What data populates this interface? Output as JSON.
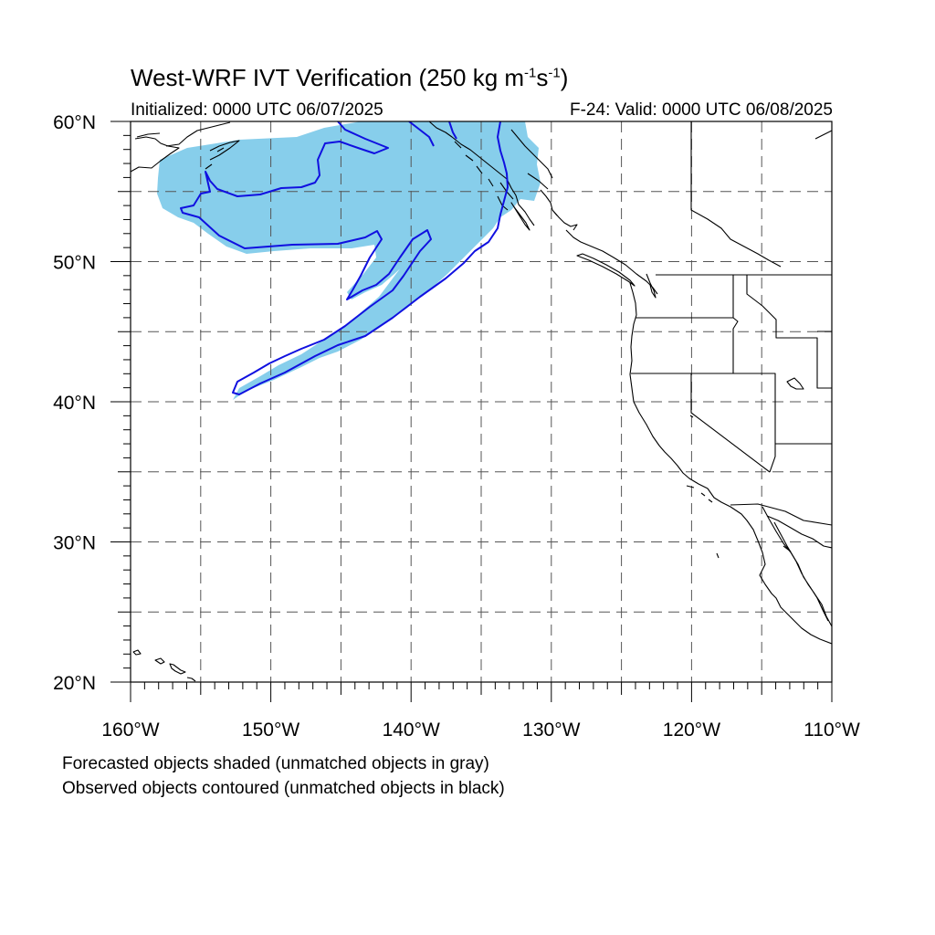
{
  "title": {
    "main": "West-WRF IVT Verification (250 kg m",
    "exp1": "-1",
    "mid": "s",
    "exp2": "-1",
    "end": ")"
  },
  "init_label": "Initialized: 0000 UTC 06/07/2025",
  "valid_label": "F-24: Valid: 0000 UTC 06/08/2025",
  "lat_labels": [
    {
      "text": "60°N",
      "lat": 60
    },
    {
      "text": "50°N",
      "lat": 50
    },
    {
      "text": "40°N",
      "lat": 40
    },
    {
      "text": "30°N",
      "lat": 30
    },
    {
      "text": "20°N",
      "lat": 20
    }
  ],
  "lon_labels": [
    {
      "text": "160°W",
      "lon": -160
    },
    {
      "text": "150°W",
      "lon": -150
    },
    {
      "text": "140°W",
      "lon": -140
    },
    {
      "text": "130°W",
      "lon": -130
    },
    {
      "text": "120°W",
      "lon": -120
    },
    {
      "text": "110°W",
      "lon": -110
    }
  ],
  "map": {
    "lon_range": [
      -160,
      -110
    ],
    "lat_range": [
      20,
      60
    ],
    "grid_interval_deg": 5,
    "grid_style": "dashed",
    "forecast_color": "#87ceeb",
    "observed_color": "#1010e0",
    "coast_color": "#000000"
  },
  "captions": {
    "line1": "Forecasted objects shaded (unmatched objects in gray)",
    "line2": "Observed objects contoured (unmatched objects in black)"
  }
}
